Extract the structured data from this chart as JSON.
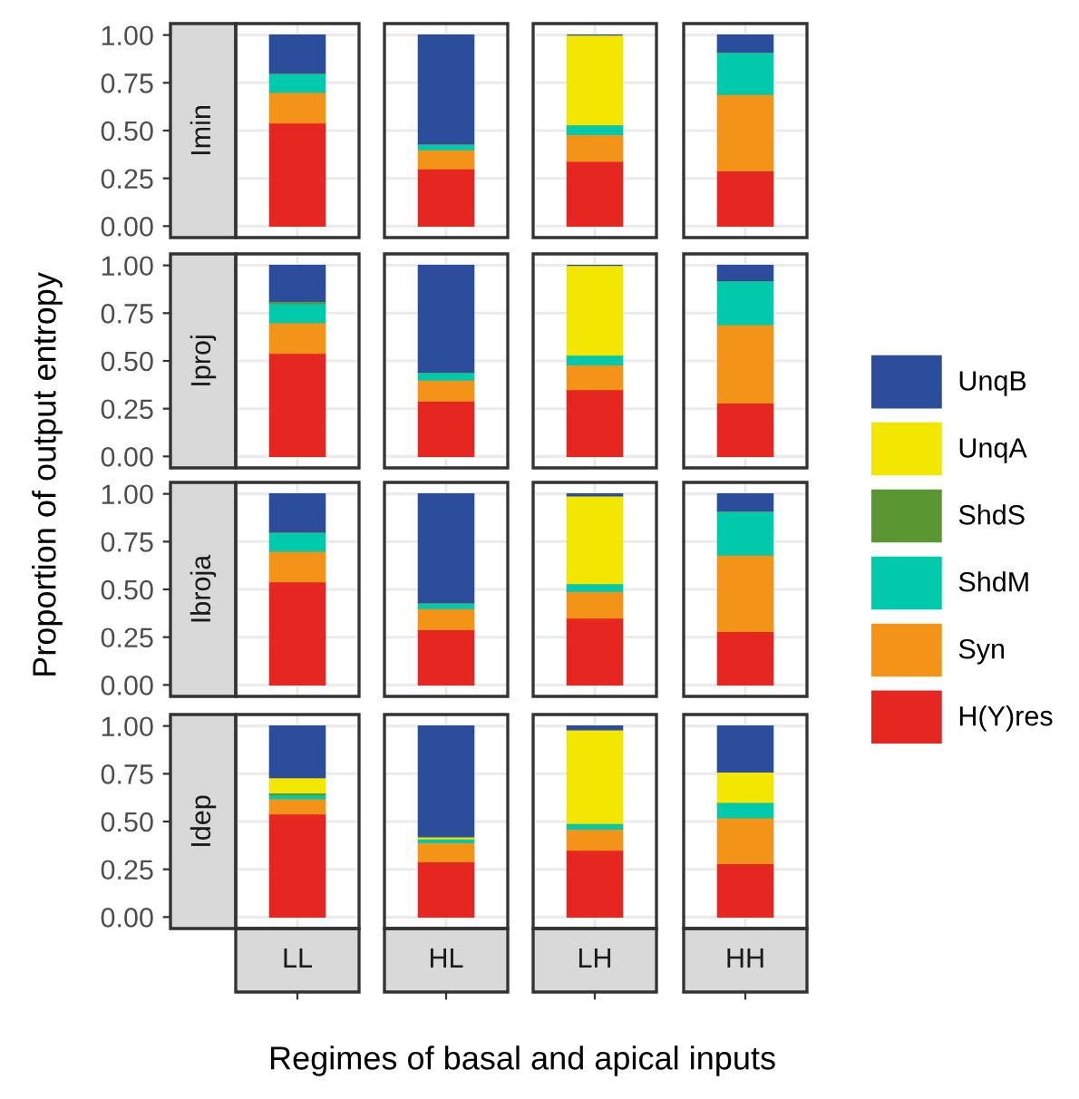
{
  "chart_data": [
    {
      "type": "bar",
      "stacked": true,
      "title": "Imin",
      "categories": [
        null,
        null,
        null,
        null
      ],
      "ylabel": "Proportion of output entropy",
      "xlabel": "Regimes of basal and apical inputs",
      "legend": "right",
      "grid": true,
      "tick_labels": "y",
      "ylim": [
        -0.06,
        1.06
      ],
      "yticks": [
        {
          "value": 0,
          "label": "0.00"
        },
        {
          "value": 0.25,
          "label": "0.25"
        },
        {
          "value": 0.5,
          "label": "0.50"
        },
        {
          "value": 0.75,
          "label": "0.75"
        },
        {
          "value": 1,
          "label": "1.00"
        }
      ],
      "series": [
        {
          "name": "H(Y)res",
          "color": "#e62621",
          "values": [
            0.54,
            0.3,
            0.34,
            0.29
          ]
        },
        {
          "name": "Syn",
          "color": "#f39419",
          "values": [
            0.16,
            0.1,
            0.14,
            0.4
          ]
        },
        {
          "name": "ShdM",
          "color": "#00c9ac",
          "values": [
            0.1,
            0.03,
            0.05,
            0.22
          ]
        },
        {
          "name": "ShdS",
          "color": "#5a9632",
          "values": [
            0,
            0,
            0,
            0
          ]
        },
        {
          "name": "UnqA",
          "color": "#f3e600",
          "values": [
            0,
            0,
            0.47,
            0
          ]
        },
        {
          "name": "UnqB",
          "color": "#2b4d9b",
          "values": [
            0.2,
            0.57,
            0,
            0.09
          ]
        }
      ]
    },
    {
      "type": "bar",
      "stacked": true,
      "title": "Iproj",
      "categories": [
        null,
        null,
        null,
        null
      ],
      "grid": true,
      "tick_labels": "y",
      "ylim": [
        -0.06,
        1.06
      ],
      "yticks": [
        {
          "value": 0,
          "label": "0.00"
        },
        {
          "value": 0.25,
          "label": "0.25"
        },
        {
          "value": 0.5,
          "label": "0.50"
        },
        {
          "value": 0.75,
          "label": "0.75"
        },
        {
          "value": 1,
          "label": "1.00"
        }
      ],
      "series": [
        {
          "color": "#e62621",
          "values": [
            0.54,
            0.29,
            0.35,
            0.28
          ]
        },
        {
          "color": "#f39419",
          "values": [
            0.16,
            0.11,
            0.13,
            0.41
          ]
        },
        {
          "color": "#00c9ac",
          "values": [
            0.1,
            0.04,
            0.05,
            0.23
          ]
        },
        {
          "color": "#5a9632",
          "values": [
            0.01,
            0,
            0,
            0
          ]
        },
        {
          "color": "#f3e600",
          "values": [
            0,
            0,
            0.47,
            0
          ]
        },
        {
          "color": "#2b4d9b",
          "values": [
            0.19,
            0.56,
            0,
            0.08
          ]
        }
      ]
    },
    {
      "type": "bar",
      "stacked": true,
      "title": "Ibroja",
      "categories": [
        null,
        null,
        null,
        null
      ],
      "grid": true,
      "tick_labels": "y",
      "ylim": [
        -0.06,
        1.06
      ],
      "yticks": [
        {
          "value": 0,
          "label": "0.00"
        },
        {
          "value": 0.25,
          "label": "0.25"
        },
        {
          "value": 0.5,
          "label": "0.50"
        },
        {
          "value": 0.75,
          "label": "0.75"
        },
        {
          "value": 1,
          "label": "1.00"
        }
      ],
      "series": [
        {
          "color": "#e62621",
          "values": [
            0.54,
            0.29,
            0.35,
            0.28
          ]
        },
        {
          "color": "#f39419",
          "values": [
            0.16,
            0.11,
            0.14,
            0.4
          ]
        },
        {
          "color": "#00c9ac",
          "values": [
            0.1,
            0.03,
            0.04,
            0.23
          ]
        },
        {
          "color": "#5a9632",
          "values": [
            0,
            0,
            0,
            0
          ]
        },
        {
          "color": "#f3e600",
          "values": [
            0,
            0,
            0.46,
            0
          ]
        },
        {
          "color": "#2b4d9b",
          "values": [
            0.2,
            0.57,
            0.01,
            0.09
          ]
        }
      ]
    },
    {
      "type": "bar",
      "stacked": true,
      "title": "Idep",
      "categories": [
        "LL",
        "HL",
        "LH",
        "HH"
      ],
      "grid": true,
      "ylim": [
        -0.06,
        1.06
      ],
      "yticks": [
        {
          "value": 0,
          "label": "0.00"
        },
        {
          "value": 0.25,
          "label": "0.25"
        },
        {
          "value": 0.5,
          "label": "0.50"
        },
        {
          "value": 0.75,
          "label": "0.75"
        },
        {
          "value": 1,
          "label": "1.00"
        }
      ],
      "series": [
        {
          "color": "#e62621",
          "values": [
            0.54,
            0.29,
            0.35,
            0.28
          ]
        },
        {
          "color": "#f39419",
          "values": [
            0.08,
            0.1,
            0.11,
            0.24
          ]
        },
        {
          "color": "#00c9ac",
          "values": [
            0.02,
            0.02,
            0.03,
            0.08
          ]
        },
        {
          "color": "#5a9632",
          "values": [
            0.01,
            0,
            0,
            0
          ]
        },
        {
          "color": "#f3e600",
          "values": [
            0.08,
            0.01,
            0.49,
            0.16
          ]
        },
        {
          "color": "#2b4d9b",
          "values": [
            0.27,
            0.58,
            0.02,
            0.24
          ]
        }
      ]
    }
  ]
}
